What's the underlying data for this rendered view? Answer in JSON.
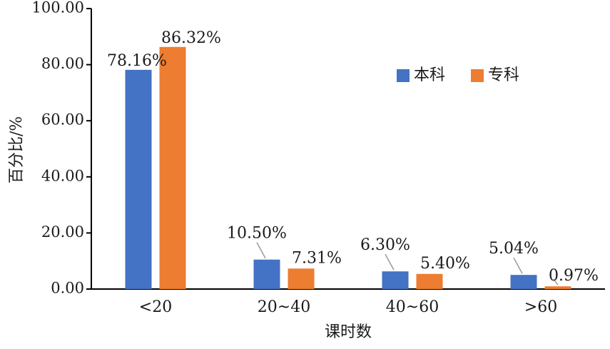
{
  "chart_data": {
    "type": "bar",
    "categories": [
      "<20",
      "20~40",
      "40~60",
      ">60"
    ],
    "series": [
      {
        "name": "本科",
        "color": "#4472C4",
        "values": [
          78.16,
          10.5,
          6.3,
          5.04
        ],
        "labels": [
          "78.16%",
          "10.50%",
          "6.30%",
          "5.04%"
        ]
      },
      {
        "name": "专科",
        "color": "#ED7D31",
        "values": [
          86.32,
          7.31,
          5.4,
          0.97
        ],
        "labels": [
          "86.32%",
          "7.31%",
          "5.40%",
          "0.97%"
        ]
      }
    ],
    "xlabel": "课时数",
    "ylabel": "百分比/%",
    "ylim": [
      0,
      100
    ],
    "yticks": [
      "0.00",
      "20.00",
      "40.00",
      "60.00",
      "80.00",
      "100.00"
    ],
    "legend_position": "top-right",
    "grid": false
  }
}
